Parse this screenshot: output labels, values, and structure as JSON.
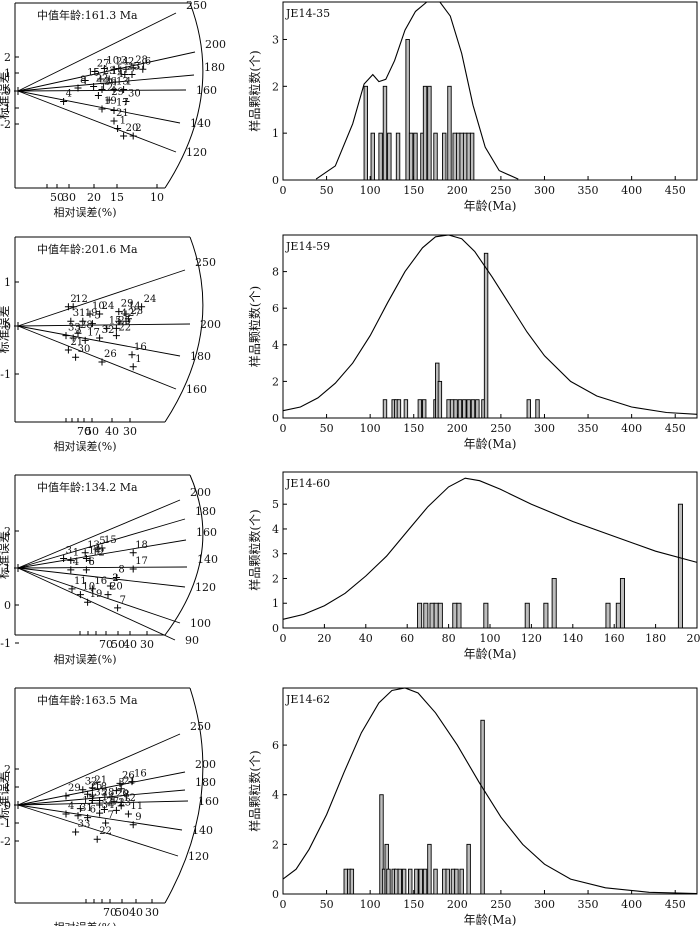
{
  "chart_data": [
    {
      "type": "radial",
      "title": "中值年龄:161.3 Ma",
      "ylabel": "标准误差",
      "xlabel": "相对误差(%)",
      "y_ticks": [
        "2",
        "1",
        "0",
        "-1",
        "-2"
      ],
      "x_ticks": [
        "50",
        "30",
        "20",
        "15",
        "10"
      ],
      "age_ticks": [
        "250",
        "200",
        "180",
        "160",
        "140",
        "120"
      ],
      "labels": [
        "10",
        "27",
        "24",
        "3",
        "2",
        "28",
        "6",
        "5",
        "25",
        "31",
        "15",
        "23",
        "11",
        "4",
        "8",
        "22",
        "26",
        "13",
        "1",
        "12",
        "29",
        "30",
        "4",
        "19",
        "17",
        "21",
        "1",
        "20",
        "2"
      ],
      "points": [
        {
          "x": 0.54,
          "y": 1.3,
          "label": "27"
        },
        {
          "x": 0.62,
          "y": 1.5,
          "label": "10"
        },
        {
          "x": 0.7,
          "y": 1.45,
          "label": "24"
        },
        {
          "x": 0.74,
          "y": 1.5,
          "label": "3"
        },
        {
          "x": 0.8,
          "y": 1.45,
          "label": "2"
        },
        {
          "x": 0.86,
          "y": 1.55,
          "label": "28"
        },
        {
          "x": 0.94,
          "y": 1.45,
          "label": "6"
        },
        {
          "x": 0.79,
          "y": 1.1,
          "label": "25"
        },
        {
          "x": 0.85,
          "y": 1.1,
          "label": "31"
        },
        {
          "x": 0.46,
          "y": 0.7,
          "label": "15"
        },
        {
          "x": 0.59,
          "y": 0.8,
          "label": "23"
        },
        {
          "x": 0.66,
          "y": 0.8,
          "label": "11"
        },
        {
          "x": 0.71,
          "y": 0.6,
          "label": "4"
        },
        {
          "x": 0.4,
          "y": 0.2,
          "label": "8"
        },
        {
          "x": 0.53,
          "y": 0.3,
          "label": "22"
        },
        {
          "x": 0.6,
          "y": 0.1,
          "label": "26"
        },
        {
          "x": 0.7,
          "y": 0.1,
          "label": "13"
        },
        {
          "x": 0.78,
          "y": 0.1,
          "label": "1"
        },
        {
          "x": 0.57,
          "y": -0.3,
          "label": "12"
        },
        {
          "x": 0.66,
          "y": -0.6,
          "label": "29"
        },
        {
          "x": 0.8,
          "y": -0.7,
          "label": "30"
        },
        {
          "x": 0.28,
          "y": -0.7,
          "label": "4"
        },
        {
          "x": 0.6,
          "y": -1.2,
          "label": "19"
        },
        {
          "x": 0.7,
          "y": -1.3,
          "label": "17"
        },
        {
          "x": 0.7,
          "y": -2.0,
          "label": "21"
        },
        {
          "x": 0.73,
          "y": -2.5,
          "label": "1"
        },
        {
          "x": 0.78,
          "y": -3.0,
          "label": "20"
        },
        {
          "x": 0.86,
          "y": -3.0,
          "label": "2"
        }
      ]
    },
    {
      "type": "bar",
      "title": "JE14-35",
      "xlabel": "年龄(Ma)",
      "ylabel": "样品颗粒数(个)",
      "xlim": [
        0,
        475
      ],
      "ylim": [
        0,
        3.8
      ],
      "x_ticks": [
        "0",
        "50",
        "100",
        "150",
        "200",
        "250",
        "300",
        "350",
        "400",
        "450"
      ],
      "y_ticks": [
        "0",
        "1",
        "2",
        "3"
      ],
      "x": [
        95,
        103,
        112,
        117,
        122,
        132,
        143,
        147,
        152,
        160,
        163,
        168,
        175,
        185,
        191,
        197,
        201,
        205,
        209,
        213,
        217
      ],
      "values": [
        2,
        1,
        1,
        2,
        1,
        1,
        3,
        1,
        1,
        1,
        2,
        2,
        1,
        1,
        2,
        1,
        1,
        1,
        1,
        1,
        1
      ],
      "curve": [
        [
          38,
          0.02
        ],
        [
          60,
          0.3
        ],
        [
          80,
          1.2
        ],
        [
          93,
          2.05
        ],
        [
          103,
          2.25
        ],
        [
          110,
          2.1
        ],
        [
          118,
          2.15
        ],
        [
          128,
          2.55
        ],
        [
          140,
          3.2
        ],
        [
          152,
          3.6
        ],
        [
          165,
          3.8
        ],
        [
          180,
          3.8
        ],
        [
          192,
          3.5
        ],
        [
          205,
          2.7
        ],
        [
          218,
          1.6
        ],
        [
          232,
          0.7
        ],
        [
          248,
          0.2
        ],
        [
          270,
          0.02
        ]
      ]
    },
    {
      "type": "radial",
      "title": "中值年龄:201.6 Ma",
      "ylabel": "标准误差",
      "xlabel": "相对误差(%)",
      "y_ticks": [
        "1",
        "0",
        "-1"
      ],
      "x_ticks": [
        "70",
        "50",
        "40",
        "30"
      ],
      "age_ticks": [
        "250",
        "200",
        "180",
        "160"
      ],
      "labels": [
        "2",
        "12",
        "24",
        "8",
        "10",
        "35",
        "24",
        "29",
        "14",
        "23",
        "31",
        "19",
        "11",
        "4",
        "5",
        "20",
        "13",
        "33",
        "28",
        "9",
        "7",
        "15",
        "25",
        "3",
        "17",
        "32",
        "18",
        "22",
        "21",
        "30",
        "26",
        "16",
        "1"
      ],
      "points": [
        {
          "x": 0.32,
          "y": 0.8,
          "label": "2"
        },
        {
          "x": 0.36,
          "y": 0.8,
          "label": "12"
        },
        {
          "x": 0.93,
          "y": 0.8,
          "label": "24"
        },
        {
          "x": 0.5,
          "y": 0.5,
          "label": "10"
        },
        {
          "x": 0.58,
          "y": 0.5,
          "label": "24"
        },
        {
          "x": 0.74,
          "y": 0.6,
          "label": "29"
        },
        {
          "x": 0.8,
          "y": 0.5,
          "label": "14"
        },
        {
          "x": 0.82,
          "y": 0.3,
          "label": "23"
        },
        {
          "x": 0.34,
          "y": 0.2,
          "label": "31"
        },
        {
          "x": 0.44,
          "y": 0.2,
          "label": "19"
        },
        {
          "x": 0.52,
          "y": 0.1,
          "label": "5"
        },
        {
          "x": 0.74,
          "y": 0.2,
          "label": "4"
        },
        {
          "x": 0.8,
          "y": 0.2,
          "label": "27"
        },
        {
          "x": 0.4,
          "y": -0.3,
          "label": "28"
        },
        {
          "x": 0.3,
          "y": -0.4,
          "label": "33"
        },
        {
          "x": 0.64,
          "y": -0.1,
          "label": "15"
        },
        {
          "x": 0.72,
          "y": -0.1,
          "label": "25"
        },
        {
          "x": 0.58,
          "y": -0.5,
          "label": "32"
        },
        {
          "x": 0.72,
          "y": -0.4,
          "label": "22"
        },
        {
          "x": 0.46,
          "y": -0.6,
          "label": "17"
        },
        {
          "x": 0.36,
          "y": -0.5,
          "label": "3"
        },
        {
          "x": 0.32,
          "y": -1.0,
          "label": "21"
        },
        {
          "x": 0.38,
          "y": -1.3,
          "label": "30"
        },
        {
          "x": 0.6,
          "y": -1.5,
          "label": "26"
        },
        {
          "x": 0.85,
          "y": -1.2,
          "label": "16"
        },
        {
          "x": 0.86,
          "y": -1.7,
          "label": "1"
        }
      ]
    },
    {
      "type": "bar",
      "title": "JE14-59",
      "xlabel": "年龄(Ma)",
      "ylabel": "样品颗粒数(个)",
      "xlim": [
        0,
        475
      ],
      "ylim": [
        0,
        10
      ],
      "x_ticks": [
        "0",
        "50",
        "100",
        "150",
        "200",
        "250",
        "300",
        "350",
        "400",
        "450"
      ],
      "y_ticks": [
        "0",
        "2",
        "4",
        "6",
        "8"
      ],
      "x": [
        117,
        127,
        130,
        133,
        141,
        157,
        162,
        175,
        177,
        180,
        190,
        194,
        198,
        203,
        208,
        213,
        218,
        223,
        230,
        233,
        282,
        292
      ],
      "values": [
        1,
        1,
        1,
        1,
        1,
        1,
        1,
        1,
        3,
        2,
        1,
        1,
        1,
        1,
        1,
        1,
        1,
        1,
        1,
        9,
        1,
        1
      ],
      "curve": [
        [
          0,
          0.4
        ],
        [
          20,
          0.6
        ],
        [
          40,
          1.1
        ],
        [
          60,
          1.9
        ],
        [
          80,
          3.0
        ],
        [
          100,
          4.5
        ],
        [
          120,
          6.3
        ],
        [
          140,
          8.0
        ],
        [
          160,
          9.3
        ],
        [
          175,
          9.9
        ],
        [
          190,
          10.1
        ],
        [
          205,
          9.8
        ],
        [
          220,
          9.1
        ],
        [
          240,
          7.7
        ],
        [
          260,
          6.2
        ],
        [
          280,
          4.7
        ],
        [
          300,
          3.4
        ],
        [
          330,
          2.0
        ],
        [
          360,
          1.2
        ],
        [
          400,
          0.6
        ],
        [
          440,
          0.3
        ],
        [
          475,
          0.2
        ]
      ]
    },
    {
      "type": "radial",
      "title": "中值年龄:134.2 Ma",
      "ylabel": "标准误差",
      "xlabel": "相对误差(%)",
      "y_ticks": [
        "2",
        "1",
        "0",
        "-1",
        "-2"
      ],
      "x_ticks": [
        "70",
        "50",
        "40",
        "30"
      ],
      "age_ticks": [
        "200",
        "180",
        "160",
        "140",
        "120",
        "100",
        "90"
      ],
      "labels": [
        "3",
        "13",
        "5",
        "15",
        "18",
        "1",
        "14",
        "12",
        "4",
        "6",
        "17",
        "8",
        "2",
        "11",
        "16",
        "10",
        "20",
        "19",
        "7"
      ],
      "points": [
        {
          "x": 0.28,
          "y": 0.5,
          "label": "3"
        },
        {
          "x": 0.34,
          "y": 0.4,
          "label": "1"
        },
        {
          "x": 0.46,
          "y": 0.8,
          "label": "13"
        },
        {
          "x": 0.56,
          "y": 1.0,
          "label": "5"
        },
        {
          "x": 0.6,
          "y": 1.05,
          "label": "15"
        },
        {
          "x": 0.86,
          "y": 0.8,
          "label": "18"
        },
        {
          "x": 0.47,
          "y": 0.5,
          "label": "14"
        },
        {
          "x": 0.5,
          "y": 0.4,
          "label": "12"
        },
        {
          "x": 0.34,
          "y": -0.1,
          "label": "4"
        },
        {
          "x": 0.47,
          "y": -0.1,
          "label": "6"
        },
        {
          "x": 0.86,
          "y": -0.05,
          "label": "17"
        },
        {
          "x": 0.72,
          "y": -0.5,
          "label": "8"
        },
        {
          "x": 0.67,
          "y": -0.95,
          "label": "2"
        },
        {
          "x": 0.35,
          "y": -1.1,
          "label": "11"
        },
        {
          "x": 0.52,
          "y": -1.1,
          "label": "16"
        },
        {
          "x": 0.42,
          "y": -1.4,
          "label": "10"
        },
        {
          "x": 0.65,
          "y": -1.4,
          "label": "20"
        },
        {
          "x": 0.48,
          "y": -1.8,
          "label": "19"
        },
        {
          "x": 0.73,
          "y": -2.1,
          "label": "7"
        }
      ]
    },
    {
      "type": "bar",
      "title": "JE14-60",
      "xlabel": "年龄(Ma)",
      "ylabel": "样品颗粒数(个)",
      "xlim": [
        0,
        200
      ],
      "ylim": [
        0,
        6.3
      ],
      "x_ticks": [
        "0",
        "20",
        "40",
        "60",
        "80",
        "100",
        "120",
        "140",
        "160",
        "180",
        "200"
      ],
      "y_ticks": [
        "0",
        "1",
        "2",
        "3",
        "4",
        "5"
      ],
      "x": [
        66,
        69,
        72,
        74,
        76,
        83,
        85,
        98,
        118,
        127,
        131,
        157,
        162,
        164,
        192
      ],
      "values": [
        1,
        1,
        1,
        1,
        1,
        1,
        1,
        1,
        1,
        1,
        2,
        1,
        1,
        2,
        5
      ],
      "curve": [
        [
          0,
          0.35
        ],
        [
          10,
          0.55
        ],
        [
          20,
          0.9
        ],
        [
          30,
          1.4
        ],
        [
          40,
          2.1
        ],
        [
          50,
          2.9
        ],
        [
          60,
          3.9
        ],
        [
          70,
          4.9
        ],
        [
          80,
          5.7
        ],
        [
          88,
          6.05
        ],
        [
          95,
          5.95
        ],
        [
          105,
          5.6
        ],
        [
          120,
          5.0
        ],
        [
          140,
          4.3
        ],
        [
          160,
          3.7
        ],
        [
          180,
          3.1
        ],
        [
          200,
          2.65
        ]
      ]
    },
    {
      "type": "radial",
      "title": "中值年龄:163.5 Ma",
      "ylabel": "标准误差",
      "xlabel": "相对误差(%)",
      "y_ticks": [
        "2",
        "1",
        "0",
        "-1",
        "-2"
      ],
      "x_ticks": [
        "70",
        "50",
        "40",
        "30"
      ],
      "age_ticks": [
        "250",
        "200",
        "180",
        "160",
        "140",
        "120"
      ],
      "labels": [
        "29",
        "32",
        "21",
        "26",
        "16",
        "25",
        "18",
        "3",
        "21",
        "35",
        "28",
        "20",
        "8",
        "14",
        "1",
        "12",
        "17",
        "27",
        "23",
        "34",
        "11",
        "4",
        "31",
        "6",
        "9",
        "10",
        "7",
        "9",
        "33",
        "30",
        "22"
      ],
      "points": [
        {
          "x": 0.3,
          "y": 0.5,
          "label": "29"
        },
        {
          "x": 0.44,
          "y": 0.85,
          "label": "32"
        },
        {
          "x": 0.52,
          "y": 0.95,
          "label": "21"
        },
        {
          "x": 0.75,
          "y": 1.2,
          "label": "26"
        },
        {
          "x": 0.85,
          "y": 1.3,
          "label": "16"
        },
        {
          "x": 0.48,
          "y": 0.6,
          "label": "25"
        },
        {
          "x": 0.52,
          "y": 0.55,
          "label": "18"
        },
        {
          "x": 0.72,
          "y": 0.8,
          "label": "3"
        },
        {
          "x": 0.76,
          "y": 0.9,
          "label": "21"
        },
        {
          "x": 0.52,
          "y": 0.25,
          "label": "35"
        },
        {
          "x": 0.58,
          "y": 0.25,
          "label": "28"
        },
        {
          "x": 0.7,
          "y": 0.2,
          "label": "20"
        },
        {
          "x": 0.76,
          "y": 0.15,
          "label": "8"
        },
        {
          "x": 0.58,
          "y": 0.0,
          "label": "14"
        },
        {
          "x": 0.76,
          "y": -0.05,
          "label": "12"
        },
        {
          "x": 0.42,
          "y": -0.2,
          "label": "17"
        },
        {
          "x": 0.62,
          "y": -0.25,
          "label": "27"
        },
        {
          "x": 0.72,
          "y": -0.3,
          "label": "23"
        },
        {
          "x": 0.58,
          "y": -0.45,
          "label": "34"
        },
        {
          "x": 0.82,
          "y": -0.5,
          "label": "11"
        },
        {
          "x": 0.3,
          "y": -0.5,
          "label": "4"
        },
        {
          "x": 0.4,
          "y": -0.6,
          "label": "31"
        },
        {
          "x": 0.48,
          "y": -0.7,
          "label": "6"
        },
        {
          "x": 0.63,
          "y": -1.0,
          "label": "7"
        },
        {
          "x": 0.86,
          "y": -1.1,
          "label": "9"
        },
        {
          "x": 0.38,
          "y": -1.5,
          "label": "33"
        },
        {
          "x": 0.56,
          "y": -1.9,
          "label": "22"
        }
      ]
    },
    {
      "type": "bar",
      "title": "JE14-62",
      "xlabel": "年龄(Ma)",
      "ylabel": "样品颗粒数(个)",
      "xlim": [
        0,
        475
      ],
      "ylim": [
        0,
        8.3
      ],
      "x_ticks": [
        "0",
        "50",
        "100",
        "150",
        "200",
        "250",
        "300",
        "350",
        "400",
        "450"
      ],
      "y_ticks": [
        "0",
        "2",
        "4",
        "6"
      ],
      "x": [
        72,
        76,
        79,
        113,
        116,
        119,
        121,
        127,
        130,
        134,
        139,
        146,
        153,
        158,
        163,
        168,
        175,
        185,
        189,
        195,
        199,
        205,
        213,
        229
      ],
      "values": [
        1,
        1,
        1,
        4,
        1,
        2,
        1,
        1,
        1,
        1,
        1,
        1,
        1,
        1,
        1,
        2,
        1,
        1,
        1,
        1,
        1,
        1,
        2,
        7
      ],
      "curve": [
        [
          0,
          0.6
        ],
        [
          15,
          1.0
        ],
        [
          30,
          1.8
        ],
        [
          50,
          3.2
        ],
        [
          70,
          4.9
        ],
        [
          90,
          6.5
        ],
        [
          110,
          7.7
        ],
        [
          125,
          8.2
        ],
        [
          140,
          8.35
        ],
        [
          155,
          8.1
        ],
        [
          175,
          7.3
        ],
        [
          200,
          6.0
        ],
        [
          225,
          4.5
        ],
        [
          250,
          3.1
        ],
        [
          275,
          2.0
        ],
        [
          300,
          1.2
        ],
        [
          330,
          0.6
        ],
        [
          370,
          0.25
        ],
        [
          420,
          0.07
        ],
        [
          475,
          0.02
        ]
      ]
    }
  ]
}
